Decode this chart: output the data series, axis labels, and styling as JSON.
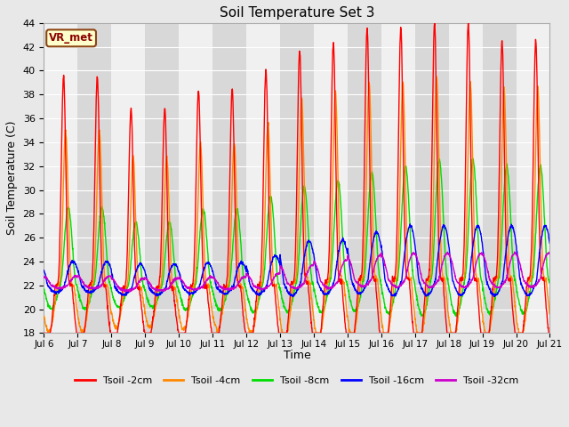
{
  "title": "Soil Temperature Set 3",
  "ylabel": "Soil Temperature (C)",
  "xlabel": "Time",
  "ylim": [
    18,
    44
  ],
  "x_tick_labels": [
    "Jul 6",
    "Jul 7",
    "Jul 8",
    "Jul 9",
    "Jul 10",
    "Jul 11",
    "Jul 12",
    "Jul 13",
    "Jul 14",
    "Jul 15",
    "Jul 16",
    "Jul 17",
    "Jul 18",
    "Jul 19",
    "Jul 20",
    "Jul 21"
  ],
  "site_label": "VR_met",
  "fig_bg_color": "#e8e8e8",
  "plot_bg_color": "#d8d8d8",
  "band_colors": [
    "#f0f0f0",
    "#d8d8d8"
  ],
  "colors": {
    "Tsoil -2cm": "#ff0000",
    "Tsoil -4cm": "#ff8800",
    "Tsoil -8cm": "#00dd00",
    "Tsoil -16cm": "#0000ff",
    "Tsoil -32cm": "#cc00cc"
  },
  "legend_labels": [
    "Tsoil -2cm",
    "Tsoil -4cm",
    "Tsoil -8cm",
    "Tsoil -16cm",
    "Tsoil -32cm"
  ],
  "n_days": 15,
  "pts_per_day": 144,
  "base_temp": 22.0,
  "min_temp_early": 20.0,
  "peak_amplitudes_2cm": [
    17.5,
    17.5,
    15.0,
    15.0,
    16.5,
    16.5,
    18.0,
    19.5,
    20.0,
    21.0,
    21.0,
    21.5,
    21.5,
    20.0,
    20.0
  ],
  "peak_amplitudes_4cm": [
    13.0,
    13.0,
    11.0,
    11.0,
    12.0,
    12.0,
    13.5,
    15.5,
    16.0,
    16.5,
    16.5,
    17.0,
    16.5,
    16.0,
    16.0
  ],
  "peak_amplitudes_8cm": [
    6.5,
    6.5,
    5.5,
    5.5,
    6.5,
    6.5,
    7.5,
    8.0,
    8.5,
    9.0,
    9.5,
    10.0,
    10.0,
    9.5,
    9.5
  ],
  "peak_amplitudes_16cm": [
    2.0,
    2.0,
    2.0,
    2.0,
    2.0,
    2.0,
    2.5,
    3.5,
    3.5,
    4.0,
    4.5,
    4.5,
    4.5,
    4.5,
    4.5
  ],
  "peak_amplitudes_32cm": [
    0.8,
    0.8,
    0.8,
    0.8,
    0.8,
    0.8,
    1.0,
    1.5,
    1.8,
    2.0,
    2.2,
    2.2,
    2.2,
    2.2,
    2.2
  ],
  "base_trend": [
    22.0,
    22.0,
    21.8,
    21.8,
    21.9,
    21.9,
    22.0,
    22.2,
    22.3,
    22.5,
    22.5,
    22.5,
    22.5,
    22.5,
    22.5
  ],
  "phase_shift_4cm": 0.06,
  "phase_shift_8cm": 0.14,
  "phase_shift_16cm": 0.28,
  "phase_shift_32cm": 0.38,
  "peak_sharpness_2cm": 6,
  "peak_sharpness_4cm": 5,
  "peak_sharpness_8cm": 2,
  "peak_sharpness_16cm": 1,
  "peak_sharpness_32cm": 1,
  "peak_hour": 0.58
}
